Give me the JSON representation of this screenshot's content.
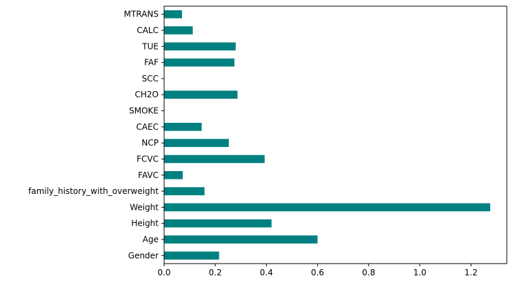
{
  "chart_data": {
    "type": "bar",
    "orientation": "horizontal",
    "categories": [
      "Gender",
      "Age",
      "Height",
      "Weight",
      "family_history_with_overweight",
      "FAVC",
      "FCVC",
      "NCP",
      "CAEC",
      "SMOKE",
      "CH2O",
      "SCC",
      "FAF",
      "TUE",
      "CALC",
      "MTRANS"
    ],
    "values": [
      0.215,
      0.6,
      0.42,
      1.275,
      0.158,
      0.073,
      0.393,
      0.253,
      0.147,
      0.0,
      0.287,
      0.0,
      0.275,
      0.28,
      0.112,
      0.07
    ],
    "xticks": [
      0.0,
      0.2,
      0.4,
      0.6,
      0.8,
      1.0,
      1.2
    ],
    "xtick_labels": [
      "0.0",
      "0.2",
      "0.4",
      "0.6",
      "0.8",
      "1.0",
      "1.2"
    ],
    "xlim": [
      0,
      1.34
    ],
    "title": "",
    "xlabel": "",
    "ylabel": "",
    "bar_color": "#008080",
    "grid": false,
    "legend": "none"
  }
}
